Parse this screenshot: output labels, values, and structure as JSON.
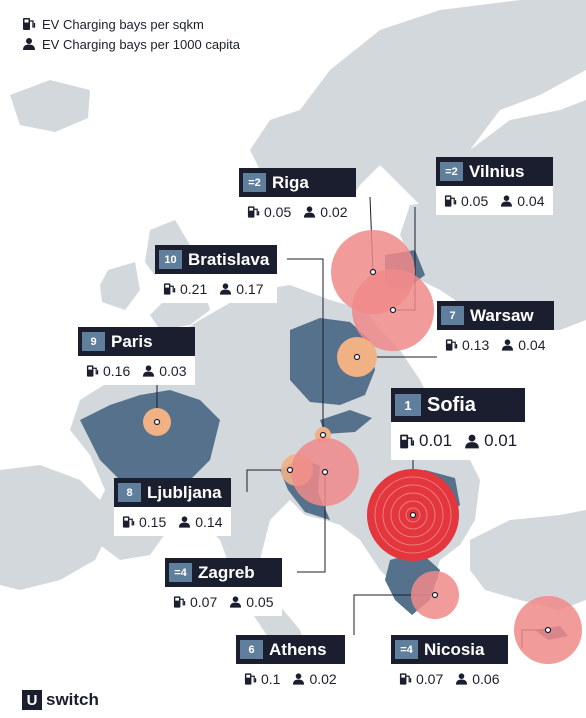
{
  "legend": {
    "sqkm_label": "EV Charging bays per sqkm",
    "capita_label": "EV Charging bays per 1000 capita"
  },
  "icons": {
    "charger": "ev-charger-icon",
    "person": "person-icon"
  },
  "colors": {
    "sea": "#ffffff",
    "land": "#d3d8dc",
    "highlight_country": "#55718c",
    "label_dark": "#1b1e2e",
    "rank_badge": "#5f7f9d",
    "bubble_red": "#e3363d",
    "bubble_pink": "#f0898a",
    "bubble_orange": "#f0b184"
  },
  "cities": [
    {
      "id": "riga",
      "rank": "=2",
      "name": "Riga",
      "sqkm": "0.05",
      "capita": "0.02"
    },
    {
      "id": "vilnius",
      "rank": "=2",
      "name": "Vilnius",
      "sqkm": "0.05",
      "capita": "0.04"
    },
    {
      "id": "bratislava",
      "rank": "10",
      "name": "Bratislava",
      "sqkm": "0.21",
      "capita": "0.17"
    },
    {
      "id": "warsaw",
      "rank": "7",
      "name": "Warsaw",
      "sqkm": "0.13",
      "capita": "0.04"
    },
    {
      "id": "paris",
      "rank": "9",
      "name": "Paris",
      "sqkm": "0.16",
      "capita": "0.03"
    },
    {
      "id": "sofia",
      "rank": "1",
      "name": "Sofia",
      "sqkm": "0.01",
      "capita": "0.01"
    },
    {
      "id": "ljubljana",
      "rank": "8",
      "name": "Ljubljana",
      "sqkm": "0.15",
      "capita": "0.14"
    },
    {
      "id": "zagreb",
      "rank": "=4",
      "name": "Zagreb",
      "sqkm": "0.07",
      "capita": "0.05"
    },
    {
      "id": "athens",
      "rank": "6",
      "name": "Athens",
      "sqkm": "0.1",
      "capita": "0.02"
    },
    {
      "id": "nicosia",
      "rank": "=4",
      "name": "Nicosia",
      "sqkm": "0.07",
      "capita": "0.06"
    }
  ],
  "brand": {
    "mark": "U",
    "name": "switch"
  }
}
